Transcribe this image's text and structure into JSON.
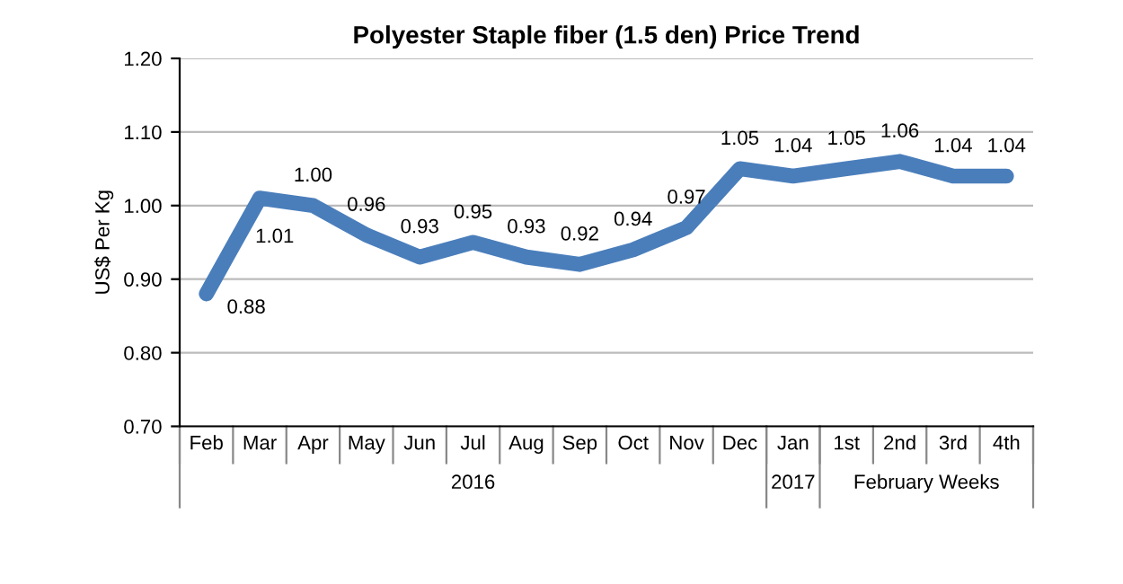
{
  "chart_data": {
    "type": "line",
    "title": "Polyester Staple fiber (1.5 den) Price Trend",
    "ylabel": "US$ Per Kg",
    "categories": [
      "Feb",
      "Mar",
      "Apr",
      "May",
      "Jun",
      "Jul",
      "Aug",
      "Sep",
      "Oct",
      "Nov",
      "Dec",
      "Jan",
      "1st",
      "2nd",
      "3rd",
      "4th"
    ],
    "series": [
      {
        "color": "#4a7ebb",
        "values": [
          0.88,
          1.01,
          1.0,
          0.96,
          0.93,
          0.95,
          0.93,
          0.92,
          0.94,
          0.97,
          1.05,
          1.04,
          1.05,
          1.06,
          1.04,
          1.04
        ],
        "value_labels": [
          "0.88",
          "1.01",
          "1.00",
          "0.96",
          "0.93",
          "0.95",
          "0.93",
          "0.92",
          "0.94",
          "0.97",
          "1.05",
          "1.04",
          "1.05",
          "1.06",
          "1.04",
          "1.04"
        ]
      }
    ],
    "ylim": [
      0.7,
      1.2
    ],
    "yticks": [
      {
        "value": 0.7,
        "label": "0.70"
      },
      {
        "value": 0.8,
        "label": "0.80"
      },
      {
        "value": 0.9,
        "label": "0.90"
      },
      {
        "value": 1.0,
        "label": "1.00"
      },
      {
        "value": 1.1,
        "label": "1.10"
      },
      {
        "value": 1.2,
        "label": "1.20"
      }
    ],
    "grid": "y",
    "marker": "none",
    "line_style": "solid",
    "legend": false,
    "annotations": [
      "2016",
      "2017",
      "February Weeks"
    ]
  }
}
